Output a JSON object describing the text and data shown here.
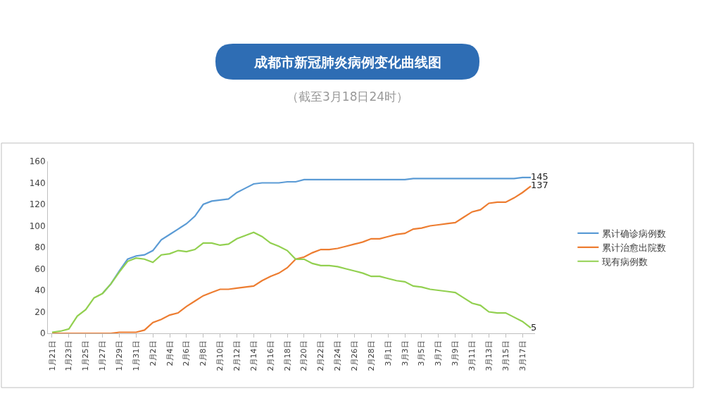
{
  "chart_data": {
    "type": "line",
    "title": "成都市新冠肺炎病例变化曲线图",
    "subtitle": "（截至3月18日24时）",
    "categories": [
      "1月21日",
      null,
      "1月23日",
      null,
      "1月25日",
      null,
      "1月27日",
      null,
      "1月29日",
      null,
      "1月31日",
      null,
      "2月2日",
      null,
      "2月4日",
      null,
      "2月6日",
      null,
      "2月8日",
      null,
      "2月10日",
      null,
      "2月12日",
      null,
      "2月14日",
      null,
      "2月16日",
      null,
      "2月18日",
      null,
      "2月20日",
      null,
      "2月22日",
      null,
      "2月24日",
      null,
      "2月26日",
      null,
      "2月28日",
      null,
      "3月1日",
      null,
      "3月3日",
      null,
      "3月5日",
      null,
      "3月7日",
      null,
      "3月9日",
      null,
      "3月11日",
      null,
      "3月13日",
      null,
      "3月15日",
      null,
      "3月17日",
      null
    ],
    "series": [
      {
        "name": "累计确诊病例数",
        "color": "#5b9bd5",
        "values": [
          null,
          null,
          null,
          null,
          null,
          null,
          37,
          46,
          58,
          69,
          72,
          73,
          77,
          87,
          92,
          97,
          102,
          109,
          120,
          123,
          124,
          125,
          131,
          135,
          139,
          140,
          140,
          140,
          141,
          141,
          143,
          143,
          143,
          143,
          143,
          143,
          143,
          143,
          143,
          143,
          143,
          143,
          143,
          144,
          144,
          144,
          144,
          144,
          144,
          144,
          144,
          144,
          144,
          144,
          144,
          144,
          145,
          145
        ],
        "value_labels": [
          null,
          null,
          null,
          null,
          null,
          null,
          null,
          null,
          null,
          null,
          null,
          null,
          null,
          null,
          null,
          null,
          null,
          null,
          null,
          null,
          null,
          null,
          null,
          null,
          null,
          null,
          null,
          null,
          null,
          null,
          null,
          null,
          null,
          null,
          null,
          null,
          null,
          null,
          null,
          null,
          null,
          null,
          null,
          null,
          null,
          null,
          null,
          null,
          null,
          null,
          null,
          null,
          null,
          null,
          null,
          null,
          null,
          "145"
        ]
      },
      {
        "name": "累计治愈出院数",
        "color": "#ed7d31",
        "values": [
          0,
          0,
          0,
          0,
          0,
          0,
          0,
          0,
          1,
          1,
          1,
          3,
          10,
          13,
          17,
          19,
          25,
          30,
          35,
          38,
          41,
          41,
          42,
          43,
          44,
          49,
          53,
          56,
          61,
          69,
          71,
          75,
          78,
          78,
          79,
          81,
          83,
          85,
          88,
          88,
          90,
          92,
          93,
          97,
          98,
          100,
          101,
          102,
          103,
          108,
          113,
          115,
          121,
          122,
          122,
          126,
          131,
          137
        ],
        "value_labels": [
          null,
          null,
          null,
          null,
          null,
          null,
          null,
          null,
          null,
          null,
          null,
          null,
          null,
          null,
          null,
          null,
          null,
          null,
          null,
          null,
          null,
          null,
          null,
          null,
          null,
          null,
          null,
          null,
          null,
          null,
          null,
          null,
          null,
          null,
          null,
          null,
          null,
          null,
          null,
          null,
          null,
          null,
          null,
          null,
          null,
          null,
          null,
          null,
          null,
          null,
          null,
          null,
          null,
          null,
          null,
          null,
          null,
          "137"
        ]
      },
      {
        "name": "现有病例数",
        "color": "#92d050",
        "values": [
          1,
          2,
          4,
          16,
          22,
          33,
          37,
          46,
          57,
          67,
          70,
          69,
          66,
          73,
          74,
          77,
          76,
          78,
          84,
          84,
          82,
          83,
          88,
          91,
          94,
          90,
          84,
          81,
          77,
          69,
          69,
          65,
          63,
          63,
          62,
          60,
          58,
          56,
          53,
          53,
          51,
          49,
          48,
          44,
          43,
          41,
          40,
          39,
          38,
          33,
          28,
          26,
          20,
          19,
          19,
          15,
          11,
          5
        ],
        "value_labels": [
          null,
          null,
          null,
          null,
          null,
          null,
          null,
          null,
          null,
          null,
          null,
          null,
          null,
          null,
          null,
          null,
          null,
          null,
          null,
          null,
          null,
          null,
          null,
          null,
          null,
          null,
          null,
          null,
          null,
          null,
          null,
          null,
          null,
          null,
          null,
          null,
          null,
          null,
          null,
          null,
          null,
          null,
          null,
          null,
          null,
          null,
          null,
          null,
          null,
          null,
          null,
          null,
          null,
          null,
          null,
          null,
          null,
          "5"
        ]
      }
    ],
    "ylim": [
      0,
      160
    ],
    "yticks": [
      0,
      20,
      40,
      60,
      80,
      100,
      120,
      140,
      160
    ],
    "grid": false,
    "legend": "right",
    "marker": "none",
    "line_style": "solid"
  }
}
